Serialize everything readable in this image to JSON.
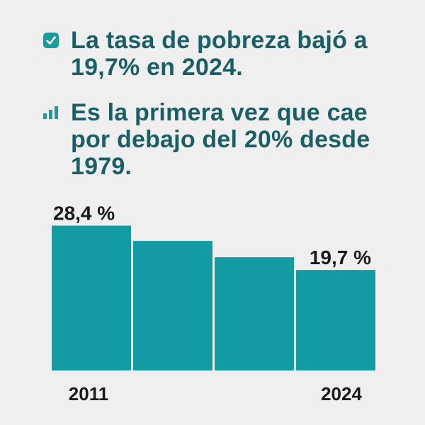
{
  "headlines": [
    {
      "icon": "checkbox-checked-icon",
      "text": "La tasa de pobreza bajó a 19,7% en 2024."
    },
    {
      "icon": "bar-chart-icon",
      "text": "Es la primera vez que cae por debajo del 20% desde 1979."
    }
  ],
  "colors": {
    "bar": "#139ba3",
    "headline_text": "#1a5f66",
    "icon": "#1a9ba0",
    "label_text": "#1a1a1a",
    "background": "#efefef"
  },
  "chart_data": {
    "type": "bar",
    "categories": [
      "2011",
      "",
      "",
      "2024"
    ],
    "values": [
      28.4,
      25.4,
      22.2,
      19.7
    ],
    "data_labels": [
      "28,4 %",
      "",
      "",
      "19,7 %"
    ],
    "title": "",
    "xlabel": "",
    "ylabel": "",
    "ylim": [
      0,
      30
    ],
    "grid": false,
    "legend": "none"
  }
}
